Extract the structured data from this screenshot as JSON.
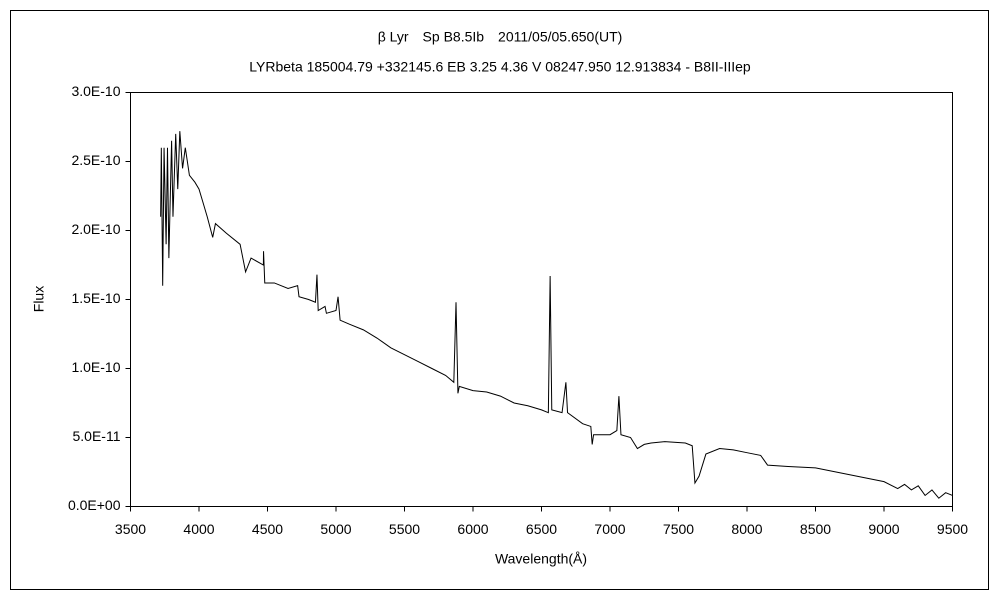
{
  "chart_data": {
    "type": "line",
    "title": "β Lyr　Sp B8.5Ib　2011/05/05.650(UT)",
    "subtitle": "LYRbeta 185004.79 +332145.6 EB 3.25 4.36 V 08247.950 12.913834 - B8II-IIIep",
    "x_label": "Wavelength(Å)",
    "y_label": "Flux",
    "xlim": [
      3500,
      9500
    ],
    "xticks": [
      3500,
      4000,
      4500,
      5000,
      5500,
      6000,
      6500,
      7000,
      7500,
      8000,
      8500,
      9000,
      9500
    ],
    "ylim": [
      0,
      3e-10
    ],
    "yticks": [
      {
        "value": 0,
        "label": "0.0E+00"
      },
      {
        "value": 5e-11,
        "label": "5.0E-11"
      },
      {
        "value": 1e-10,
        "label": "1.0E-10"
      },
      {
        "value": 1.5e-10,
        "label": "1.5E-10"
      },
      {
        "value": 2e-10,
        "label": "2.0E-10"
      },
      {
        "value": 2.5e-10,
        "label": "2.5E-10"
      },
      {
        "value": 3e-10,
        "label": "3.0E-10"
      }
    ],
    "grid": false,
    "color": "#000000",
    "x": [
      3720,
      3725,
      3735,
      3745,
      3760,
      3770,
      3780,
      3800,
      3810,
      3830,
      3845,
      3860,
      3880,
      3900,
      3930,
      3970,
      4000,
      4030,
      4060,
      4100,
      4120,
      4200,
      4300,
      4340,
      4380,
      4470,
      4471,
      4480,
      4550,
      4650,
      4720,
      4730,
      4800,
      4850,
      4861,
      4870,
      4920,
      4930,
      5000,
      5015,
      5030,
      5100,
      5200,
      5300,
      5400,
      5500,
      5600,
      5700,
      5800,
      5860,
      5876,
      5890,
      5900,
      6000,
      6100,
      6200,
      6300,
      6400,
      6500,
      6550,
      6563,
      6575,
      6650,
      6678,
      6690,
      6800,
      6860,
      6870,
      6880,
      7000,
      7050,
      7065,
      7080,
      7150,
      7200,
      7250,
      7300,
      7400,
      7550,
      7600,
      7620,
      7650,
      7700,
      7800,
      7900,
      8000,
      8100,
      8150,
      8300,
      8500,
      8700,
      8900,
      9000,
      9100,
      9150,
      9200,
      9250,
      9300,
      9350,
      9400,
      9450,
      9500
    ],
    "values": [
      2.1e-10,
      2.6e-10,
      1.6e-10,
      2.6e-10,
      1.9e-10,
      2.6e-10,
      1.8e-10,
      2.65e-10,
      2.1e-10,
      2.7e-10,
      2.3e-10,
      2.72e-10,
      2.45e-10,
      2.6e-10,
      2.4e-10,
      2.35e-10,
      2.3e-10,
      2.2e-10,
      2.1e-10,
      1.95e-10,
      2.05e-10,
      1.98e-10,
      1.9e-10,
      1.7e-10,
      1.8e-10,
      1.75e-10,
      1.85e-10,
      1.62e-10,
      1.62e-10,
      1.58e-10,
      1.6e-10,
      1.52e-10,
      1.5e-10,
      1.48e-10,
      1.68e-10,
      1.42e-10,
      1.45e-10,
      1.4e-10,
      1.42e-10,
      1.52e-10,
      1.35e-10,
      1.32e-10,
      1.28e-10,
      1.22e-10,
      1.15e-10,
      1.1e-10,
      1.05e-10,
      1e-10,
      9.5e-11,
      9e-11,
      1.48e-10,
      8.2e-11,
      8.7e-11,
      8.4e-11,
      8.3e-11,
      8e-11,
      7.5e-11,
      7.3e-11,
      7e-11,
      6.8e-11,
      1.67e-10,
      7e-11,
      6.8e-11,
      9e-11,
      6.8e-11,
      6e-11,
      5.8e-11,
      4.5e-11,
      5.2e-11,
      5.2e-11,
      5.5e-11,
      8e-11,
      5.2e-11,
      5e-11,
      4.2e-11,
      4.5e-11,
      4.6e-11,
      4.7e-11,
      4.6e-11,
      4.4e-11,
      1.7e-11,
      2.2e-11,
      3.8e-11,
      4.2e-11,
      4.1e-11,
      3.9e-11,
      3.7e-11,
      3e-11,
      2.9e-11,
      2.8e-11,
      2.4e-11,
      2e-11,
      1.8e-11,
      1.3e-11,
      1.6e-11,
      1.2e-11,
      1.5e-11,
      8e-12,
      1.2e-11,
      6e-12,
      1e-11,
      8e-12
    ]
  }
}
